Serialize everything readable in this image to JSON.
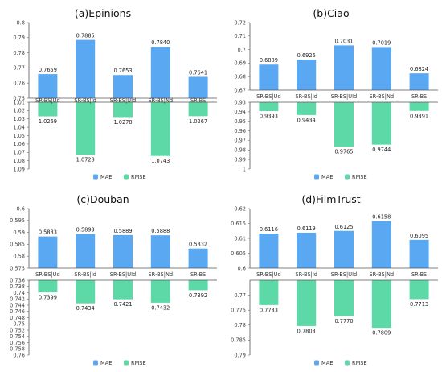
{
  "chart_data": [
    {
      "type": "bar",
      "title": "(a)Epinions",
      "categories": [
        "SR-BS|Ud",
        "SR-BS|Id",
        "SR-BS|UId",
        "SR-BS|Nd",
        "SR-BS"
      ],
      "series": [
        {
          "name": "MAE",
          "values": [
            0.7659,
            0.7885,
            0.7653,
            0.784,
            0.7641
          ],
          "value_labels": [
            "0.7659",
            "0.7885",
            "0.7653",
            "0.7840",
            "0.7641"
          ],
          "ylim": [
            0.75,
            0.8
          ],
          "yticks": [
            "0.75",
            "0.76",
            "0.77",
            "0.78",
            "0.79",
            "0.8"
          ],
          "color": "#5aa7f2"
        },
        {
          "name": "RMSE",
          "values": [
            1.0269,
            1.0728,
            1.0278,
            1.0743,
            1.0267
          ],
          "value_labels": [
            "1.0269",
            "1.0728",
            "1.0278",
            "1.0743",
            "1.0267"
          ],
          "ylim": [
            1.01,
            1.09
          ],
          "yticks": [
            "1.01",
            "1.02",
            "1.03",
            "1.04",
            "1.05",
            "1.06",
            "1.07",
            "1.08",
            "1.09"
          ],
          "inverted": true,
          "color": "#5cd9a6"
        }
      ],
      "legend_position": "bottom-center"
    },
    {
      "type": "bar",
      "title": "(b)Ciao",
      "categories": [
        "SR-BS|Ud",
        "SR-BS|Id",
        "SR-BS|UId",
        "SR-BS|Nd",
        "SR-BS"
      ],
      "series": [
        {
          "name": "MAE",
          "values": [
            0.6889,
            0.6926,
            0.7031,
            0.7019,
            0.6824
          ],
          "value_labels": [
            "0.6889",
            "0.6926",
            "0.7031",
            "0.7019",
            "0.6824"
          ],
          "ylim": [
            0.67,
            0.72
          ],
          "yticks": [
            "0.67",
            "0.68",
            "0.69",
            "0.7",
            "0.71",
            "0.72"
          ],
          "color": "#5aa7f2"
        },
        {
          "name": "RMSE",
          "values": [
            0.9393,
            0.9434,
            0.9765,
            0.9744,
            0.9391
          ],
          "value_labels": [
            "0.9393",
            "0.9434",
            "0.9765",
            "0.9744",
            "0.9391"
          ],
          "ylim": [
            0.93,
            1.0
          ],
          "yticks": [
            "0.93",
            "0.94",
            "0.95",
            "0.96",
            "0.97",
            "0.98",
            "0.99",
            "1"
          ],
          "inverted": true,
          "color": "#5cd9a6"
        }
      ],
      "legend_position": "bottom-center"
    },
    {
      "type": "bar",
      "title": "(c)Douban",
      "categories": [
        "SR-BS|Ud",
        "SR-BS|Id",
        "SR-BS|UId",
        "SR-BS|Nd",
        "SR-BS"
      ],
      "series": [
        {
          "name": "MAE",
          "values": [
            0.5883,
            0.5893,
            0.5889,
            0.5888,
            0.5832
          ],
          "value_labels": [
            "0.5883",
            "0.5893",
            "0.5889",
            "0.5888",
            "0.5832"
          ],
          "ylim": [
            0.575,
            0.6
          ],
          "yticks": [
            "0.575",
            "0.58",
            "0.585",
            "0.59",
            "0.595",
            "0.6"
          ],
          "color": "#5aa7f2"
        },
        {
          "name": "RMSE",
          "values": [
            0.7399,
            0.7434,
            0.7421,
            0.7432,
            0.7392
          ],
          "value_labels": [
            "0.7399",
            "0.7434",
            "0.7421",
            "0.7432",
            "0.7392"
          ],
          "ylim": [
            0.736,
            0.76
          ],
          "yticks": [
            "0.736",
            "0.738",
            "0.74",
            "0.742",
            "0.744",
            "0.746",
            "0.748",
            "0.75",
            "0.752",
            "0.754",
            "0.756",
            "0.758",
            "0.76"
          ],
          "inverted": true,
          "color": "#5cd9a6"
        }
      ],
      "legend_position": "bottom-center"
    },
    {
      "type": "bar",
      "title": "(d)FilmTrust",
      "categories": [
        "SR-BS|Ud",
        "SR-BS|Id",
        "SR-BS|UId",
        "SR-BS|Nd",
        "SR-BS"
      ],
      "series": [
        {
          "name": "MAE",
          "values": [
            0.6116,
            0.6119,
            0.6125,
            0.6158,
            0.6095
          ],
          "value_labels": [
            "0.6116",
            "0.6119",
            "0.6125",
            "0.6158",
            "0.6095"
          ],
          "ylim": [
            0.6,
            0.62
          ],
          "yticks": [
            "0.6",
            "0.605",
            "0.61",
            "0.615",
            "0.62"
          ],
          "color": "#5aa7f2"
        },
        {
          "name": "RMSE",
          "values": [
            0.7733,
            0.7803,
            0.777,
            0.7809,
            0.7713
          ],
          "value_labels": [
            "0.7733",
            "0.7803",
            "0.7770",
            "0.7809",
            "0.7713"
          ],
          "ylim": [
            0.765,
            0.79
          ],
          "yticks": [
            "0.77",
            "0.775",
            "0.78",
            "0.785",
            "0.79"
          ],
          "inverted": true,
          "color": "#5cd9a6"
        }
      ],
      "legend_position": "bottom-center"
    }
  ]
}
